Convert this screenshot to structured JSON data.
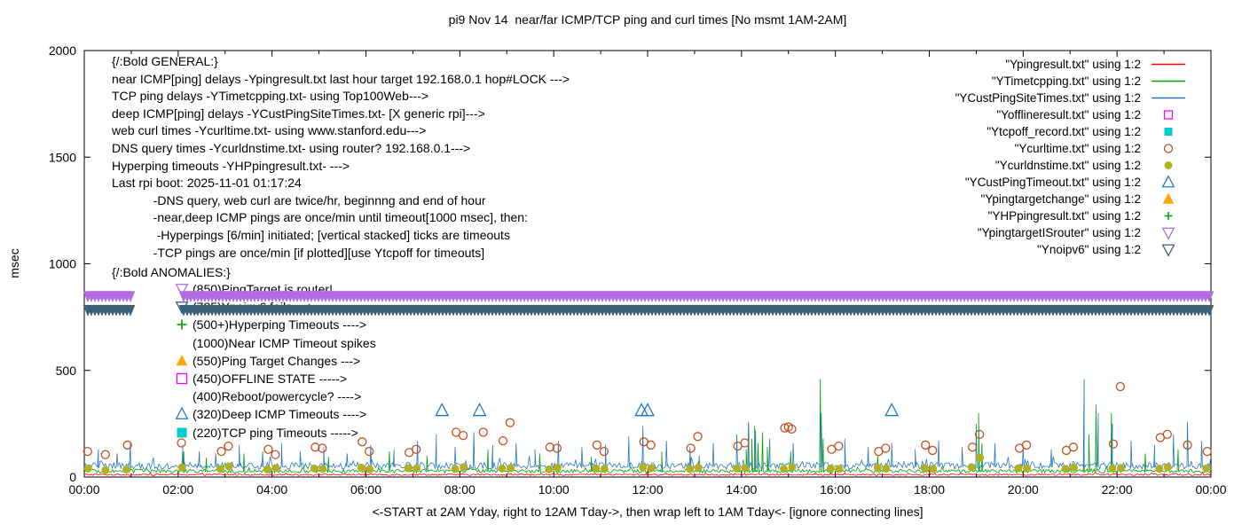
{
  "title": "pi9 Nov 14  near/far ICMP/TCP ping and curl times [No msmt 1AM-2AM]",
  "axis": {
    "y_label": "msec",
    "x_label": "<-START at 2AM Yday, right to 12AM Tday->, then wrap left to 1AM Tday<- [ignore connecting lines]"
  },
  "general": {
    "lines": [
      "{/:Bold GENERAL:}",
      "near ICMP[ping] delays -Ypingresult.txt last hour target 192.168.0.1 hop#LOCK --->",
      "TCP ping delays -YTimetcpping.txt- using Top100Web--->",
      "deep ICMP[ping] delays -YCustPingSiteTimes.txt- [X generic rpi]--->",
      "web curl times -Ycurltime.txt- using www.stanford.edu--->",
      "DNS query times -Ycurldnstime.txt- using router? 192.168.0.1--->",
      "Hyperping timeouts -YHPpingresult.txt- --->",
      "Last rpi boot: 2025-11-01 01:17:24",
      "            -DNS query, web curl are twice/hr, beginnng and end of hour",
      "            -near,deep ICMP pings are once/min until timeout[1000 msec], then:",
      "             -Hyperpings [6/min] initiated; [vertical stacked] ticks are timeouts",
      "            -TCP pings are once/min [if plotted][use Ytcpoff for timeouts]"
    ]
  },
  "anomalies": {
    "header": "{/:Bold ANOMALIES:}",
    "items": [
      {
        "name": "pingtarget-is-router",
        "marker": "triangle-down-open",
        "color": "#b36ae2",
        "label": "(850)PingTarget is router!"
      },
      {
        "name": "noipv6-state",
        "marker": "triangle-down-open",
        "color": "#3a6178",
        "label": "(785)Ynoipv6 fails --->"
      },
      {
        "name": "hyperping-timeouts",
        "marker": "plus",
        "color": "#00a000",
        "label": "(500+)Hyperping Timeouts ---->"
      },
      {
        "name": "near-icmp-timeouts",
        "marker": "none",
        "color": "#000000",
        "label": "(1000)Near ICMP Timeout spikes"
      },
      {
        "name": "ping-target-changes",
        "marker": "triangle-up-filled",
        "color": "#ffa500",
        "label": "(550)Ping Target Changes --->"
      },
      {
        "name": "offline-state",
        "marker": "square-open",
        "color": "#ff00ff",
        "label": "(450)OFFLINE STATE ----->"
      },
      {
        "name": "reboot-powercycle",
        "marker": "none",
        "color": "#000000",
        "label": "(400)Reboot/powercycle? ---->"
      },
      {
        "name": "deep-icmp-timeouts",
        "marker": "triangle-up-open",
        "color": "#2878c0",
        "label": "(320)Deep ICMP Timeouts ---->"
      },
      {
        "name": "tcp-ping-timeouts",
        "marker": "square-filled",
        "color": "#00cdcd",
        "label": "(220)TCP ping Timeouts ----->"
      }
    ]
  },
  "legend": {
    "items": [
      {
        "name": "Ypingresult",
        "label": "\"Ypingresult.txt\" using 1:2",
        "marker": "line",
        "color": "#ff0000"
      },
      {
        "name": "YTimetcpping",
        "label": "\"YTimetcpping.txt\" using 1:2",
        "marker": "line",
        "color": "#00a000"
      },
      {
        "name": "YCustPingSiteTimes",
        "label": "\"YCustPingSiteTimes.txt\" using 1:2",
        "marker": "line",
        "color": "#2878c0"
      },
      {
        "name": "Yofflineresult",
        "label": "\"Yofflineresult.txt\" using 1:2",
        "marker": "square-open",
        "color": "#ff00ff"
      },
      {
        "name": "Ytcpoff_record",
        "label": "\"Ytcpoff_record.txt\" using 1:2",
        "marker": "square-filled",
        "color": "#00cdcd"
      },
      {
        "name": "Ycurltime",
        "label": "\"Ycurltime.txt\" using 1:2",
        "marker": "circle-open",
        "color": "#c05020"
      },
      {
        "name": "Ycurldnstime",
        "label": "\"Ycurldnstime.txt\" using 1:2",
        "marker": "circle-filled",
        "color": "#b0b020"
      },
      {
        "name": "YCustPingTimeout",
        "label": "\"YCustPingTimeout.txt\" using 1:2",
        "marker": "triangle-up-open",
        "color": "#2878c0"
      },
      {
        "name": "Ypingtargetchange",
        "label": "\"Ypingtargetchange\" using 1:2",
        "marker": "triangle-up-filled",
        "color": "#ffa500"
      },
      {
        "name": "YHPpingresult",
        "label": "\"YHPpingresult.txt\" using 1:2",
        "marker": "plus",
        "color": "#00a000"
      },
      {
        "name": "YpingtargetISrouter",
        "label": "\"YpingtargetISrouter\" using 1:2",
        "marker": "triangle-down-open",
        "color": "#b36ae2"
      },
      {
        "name": "Ynoipv6",
        "label": "\"Ynoipv6\" using 1:2",
        "marker": "triangle-down-open",
        "color": "#3a6178"
      }
    ]
  },
  "chart_data": {
    "type": "line",
    "x_unit": "hours",
    "xlim": [
      0,
      24
    ],
    "ylim": [
      0,
      2000
    ],
    "grid": false,
    "legend_position": "top-right-outside-style",
    "x_ticks": {
      "values": [
        0,
        2,
        4,
        6,
        8,
        10,
        12,
        14,
        16,
        18,
        20,
        22,
        24
      ],
      "labels": [
        "00:00",
        "02:00",
        "04:00",
        "06:00",
        "08:00",
        "10:00",
        "12:00",
        "14:00",
        "16:00",
        "18:00",
        "20:00",
        "22:00",
        "00:00"
      ]
    },
    "y_ticks": {
      "values": [
        0,
        500,
        1000,
        1500,
        2000
      ],
      "labels": [
        "0",
        "500",
        "1000",
        "1500",
        "2000"
      ]
    },
    "lines": [
      {
        "name": "Ypingresult",
        "color": "#ff0000",
        "baseline": 10,
        "noise": 4,
        "spikes": [
          [
            6.0,
            45
          ],
          [
            12.0,
            40
          ],
          [
            18.0,
            50
          ]
        ]
      },
      {
        "name": "YTimetcpping",
        "color": "#00a000",
        "baseline": 25,
        "noise": 9,
        "spikes": [
          [
            2.12,
            120
          ],
          [
            2.6,
            90
          ],
          [
            3.4,
            110
          ],
          [
            5.2,
            95
          ],
          [
            6.5,
            120
          ],
          [
            7.3,
            100
          ],
          [
            8.6,
            130
          ],
          [
            9.7,
            110
          ],
          [
            10.8,
            95
          ],
          [
            12.3,
            120
          ],
          [
            13.1,
            100
          ],
          [
            14.1,
            130
          ],
          [
            14.15,
            250
          ],
          [
            14.22,
            180
          ],
          [
            14.28,
            240
          ],
          [
            14.35,
            160
          ],
          [
            14.45,
            210
          ],
          [
            14.55,
            140
          ],
          [
            15.05,
            120
          ],
          [
            15.68,
            460
          ],
          [
            15.74,
            180
          ],
          [
            16.9,
            100
          ],
          [
            19.05,
            300
          ],
          [
            19.12,
            160
          ],
          [
            21.3,
            430
          ],
          [
            21.4,
            200
          ],
          [
            21.55,
            340
          ],
          [
            21.88,
            300
          ],
          [
            22.6,
            110
          ],
          [
            23.3,
            130
          ]
        ]
      },
      {
        "name": "YCustPingSiteTimes",
        "color": "#2878c0",
        "baseline": 48,
        "noise": 16,
        "spikes": [
          [
            0.3,
            130
          ],
          [
            0.7,
            110
          ],
          [
            0.98,
            160
          ],
          [
            2.1,
            150
          ],
          [
            2.45,
            120
          ],
          [
            2.8,
            110
          ],
          [
            3.3,
            150
          ],
          [
            3.8,
            120
          ],
          [
            4.2,
            160
          ],
          [
            4.6,
            120
          ],
          [
            5.1,
            140
          ],
          [
            5.6,
            110
          ],
          [
            6.1,
            150
          ],
          [
            6.6,
            130
          ],
          [
            7.1,
            170
          ],
          [
            7.5,
            200
          ],
          [
            7.9,
            140
          ],
          [
            8.3,
            210
          ],
          [
            8.7,
            150
          ],
          [
            9.2,
            160
          ],
          [
            9.6,
            130
          ],
          [
            10.1,
            170
          ],
          [
            10.6,
            140
          ],
          [
            11.1,
            150
          ],
          [
            11.6,
            190
          ],
          [
            11.9,
            240
          ],
          [
            12.4,
            170
          ],
          [
            12.9,
            140
          ],
          [
            13.4,
            160
          ],
          [
            13.9,
            200
          ],
          [
            14.15,
            260
          ],
          [
            14.3,
            220
          ],
          [
            14.6,
            180
          ],
          [
            15.1,
            160
          ],
          [
            15.7,
            300
          ],
          [
            16.2,
            180
          ],
          [
            16.7,
            140
          ],
          [
            17.2,
            160
          ],
          [
            17.7,
            130
          ],
          [
            18.2,
            170
          ],
          [
            18.7,
            140
          ],
          [
            19.0,
            250
          ],
          [
            19.4,
            160
          ],
          [
            20.0,
            140
          ],
          [
            20.6,
            130
          ],
          [
            21.3,
            460
          ],
          [
            21.6,
            300
          ],
          [
            21.9,
            250
          ],
          [
            22.3,
            170
          ],
          [
            22.8,
            150
          ],
          [
            23.2,
            200
          ],
          [
            23.5,
            260
          ],
          [
            23.8,
            170
          ]
        ]
      }
    ],
    "points": [
      {
        "name": "Ycurltime",
        "marker": "circle-open",
        "color": "#c05020",
        "data": [
          [
            0.07,
            120
          ],
          [
            0.45,
            105
          ],
          [
            0.92,
            150
          ],
          [
            2.07,
            160
          ],
          [
            2.92,
            120
          ],
          [
            3.07,
            145
          ],
          [
            3.92,
            130
          ],
          [
            4.07,
            105
          ],
          [
            4.92,
            140
          ],
          [
            5.07,
            135
          ],
          [
            5.92,
            165
          ],
          [
            6.07,
            120
          ],
          [
            6.92,
            115
          ],
          [
            7.07,
            130
          ],
          [
            7.92,
            210
          ],
          [
            8.07,
            195
          ],
          [
            8.5,
            210
          ],
          [
            8.92,
            170
          ],
          [
            9.07,
            255
          ],
          [
            9.92,
            140
          ],
          [
            10.07,
            135
          ],
          [
            10.92,
            150
          ],
          [
            11.07,
            120
          ],
          [
            11.92,
            165
          ],
          [
            12.07,
            150
          ],
          [
            12.92,
            135
          ],
          [
            13.07,
            190
          ],
          [
            13.92,
            145
          ],
          [
            14.07,
            160
          ],
          [
            14.92,
            230
          ],
          [
            15.0,
            235
          ],
          [
            15.07,
            225
          ],
          [
            15.92,
            130
          ],
          [
            16.07,
            145
          ],
          [
            16.92,
            120
          ],
          [
            17.07,
            135
          ],
          [
            17.92,
            150
          ],
          [
            18.07,
            125
          ],
          [
            18.92,
            140
          ],
          [
            19.07,
            200
          ],
          [
            19.92,
            135
          ],
          [
            20.07,
            150
          ],
          [
            20.92,
            125
          ],
          [
            21.07,
            140
          ],
          [
            21.92,
            155
          ],
          [
            22.07,
            424
          ],
          [
            22.92,
            185
          ],
          [
            23.07,
            200
          ],
          [
            23.5,
            150
          ],
          [
            23.92,
            120
          ]
        ]
      },
      {
        "name": "Ycurldnstime",
        "marker": "circle-filled",
        "color": "#b0b020",
        "data": [
          [
            0.08,
            40
          ],
          [
            0.45,
            32
          ],
          [
            0.9,
            35
          ],
          [
            2.08,
            45
          ],
          [
            2.9,
            38
          ],
          [
            3.08,
            50
          ],
          [
            3.9,
            36
          ],
          [
            4.08,
            42
          ],
          [
            4.9,
            40
          ],
          [
            5.08,
            38
          ],
          [
            5.9,
            44
          ],
          [
            6.08,
            36
          ],
          [
            6.9,
            42
          ],
          [
            7.08,
            40
          ],
          [
            7.9,
            38
          ],
          [
            8.08,
            46
          ],
          [
            8.9,
            40
          ],
          [
            9.08,
            42
          ],
          [
            9.9,
            36
          ],
          [
            10.08,
            44
          ],
          [
            10.9,
            40
          ],
          [
            11.08,
            38
          ],
          [
            11.9,
            46
          ],
          [
            12.08,
            42
          ],
          [
            12.9,
            38
          ],
          [
            13.08,
            44
          ],
          [
            13.9,
            40
          ],
          [
            14.08,
            42
          ],
          [
            14.9,
            38
          ],
          [
            15.08,
            46
          ],
          [
            15.9,
            40
          ],
          [
            16.08,
            38
          ],
          [
            16.9,
            44
          ],
          [
            17.08,
            40
          ],
          [
            17.9,
            42
          ],
          [
            18.08,
            38
          ],
          [
            18.9,
            46
          ],
          [
            19.08,
            90
          ],
          [
            19.9,
            42
          ],
          [
            20.08,
            40
          ],
          [
            20.9,
            38
          ],
          [
            21.08,
            44
          ],
          [
            21.9,
            40
          ],
          [
            22.08,
            42
          ],
          [
            22.9,
            38
          ],
          [
            23.08,
            46
          ],
          [
            23.9,
            40
          ]
        ]
      },
      {
        "name": "YCustPingTimeout",
        "marker": "triangle-up-open",
        "color": "#2878c0",
        "data": [
          [
            7.62,
            312
          ],
          [
            8.42,
            312
          ],
          [
            11.87,
            312
          ],
          [
            12.0,
            312
          ],
          [
            17.2,
            312
          ]
        ]
      },
      {
        "name": "Yofflineresult",
        "marker": "square-open",
        "color": "#ff00ff",
        "data": []
      },
      {
        "name": "Ytcpoff_record",
        "marker": "square-filled",
        "color": "#00cdcd",
        "data": []
      },
      {
        "name": "Ypingtargetchange",
        "marker": "triangle-up-filled",
        "color": "#ffa500",
        "data": []
      },
      {
        "name": "YHPpingresult",
        "marker": "plus",
        "color": "#00a000",
        "data": []
      }
    ],
    "bands": [
      {
        "name": "YpingtargetISrouter",
        "marker": "triangle-down-open",
        "color": "#b36ae2",
        "y": 850,
        "x_range": [
          0,
          24
        ],
        "gap": [
          1.0,
          2.05
        ]
      },
      {
        "name": "Ynoipv6",
        "marker": "triangle-down-open",
        "color": "#3a6178",
        "y": 785,
        "x_range": [
          0,
          24
        ],
        "gap": [
          1.0,
          2.05
        ]
      }
    ]
  }
}
